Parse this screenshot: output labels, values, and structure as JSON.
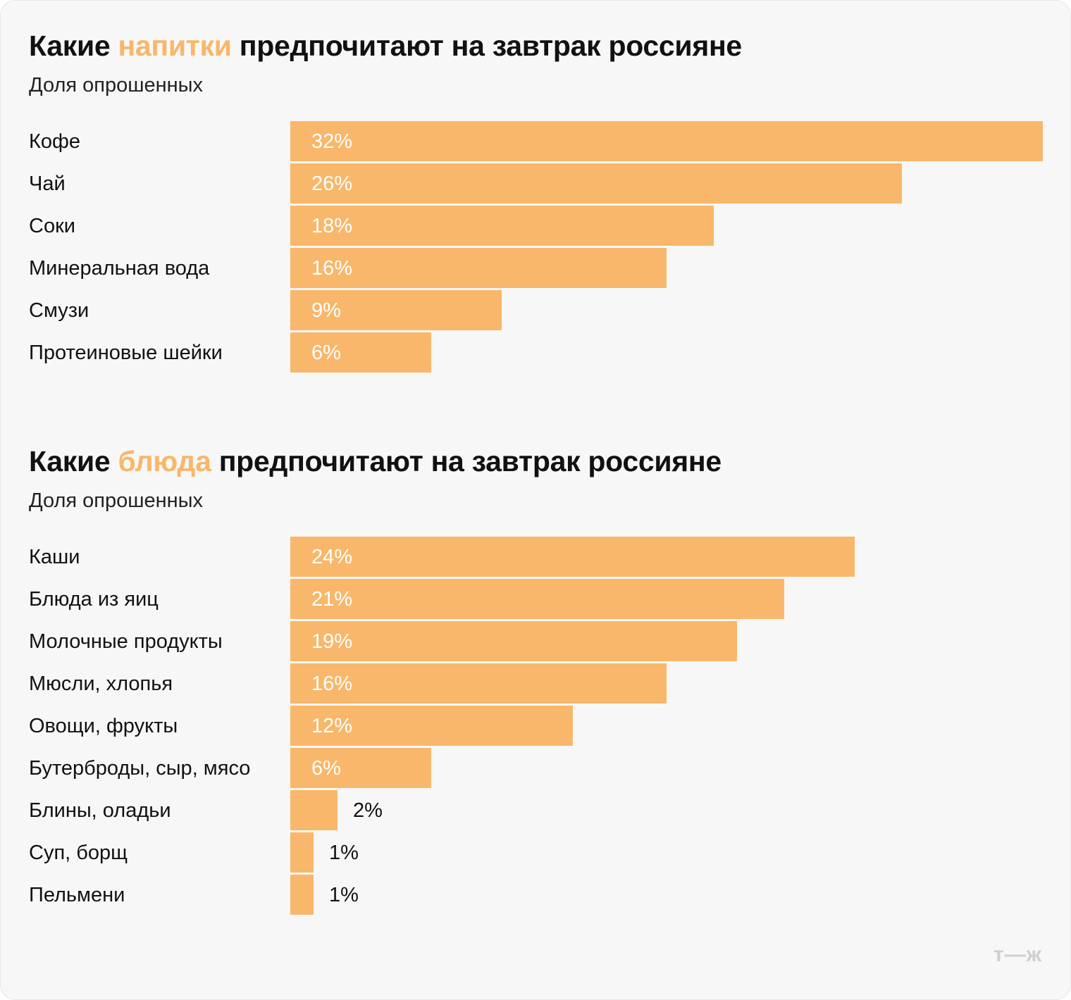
{
  "chart_data": [
    {
      "type": "bar",
      "orientation": "horizontal",
      "title_parts": [
        "Какие ",
        "напитки",
        " предпочитают на завтрак россияне"
      ],
      "subtitle": "Доля опрошенных",
      "categories": [
        "Кофе",
        "Чай",
        "Соки",
        "Минеральная вода",
        "Смузи",
        "Протеиновые шейки"
      ],
      "values": [
        32,
        26,
        18,
        16,
        9,
        6
      ],
      "labels": [
        "32%",
        "26%",
        "18%",
        "16%",
        "9%",
        "6%"
      ],
      "xlim": [
        0,
        32
      ],
      "grid": false
    },
    {
      "type": "bar",
      "orientation": "horizontal",
      "title_parts": [
        "Какие ",
        "блюда",
        " предпочитают на завтрак россияне"
      ],
      "subtitle": "Доля опрошенных",
      "categories": [
        "Каши",
        "Блюда из яиц",
        "Молочные продукты",
        "Мюсли, хлопья",
        "Овощи, фрукты",
        "Бутерброды, сыр, мясо",
        "Блины, оладьи",
        "Суп, борщ",
        "Пельмени"
      ],
      "values": [
        24,
        21,
        19,
        16,
        12,
        6,
        2,
        1,
        1
      ],
      "labels": [
        "24%",
        "21%",
        "19%",
        "16%",
        "12%",
        "6%",
        "2%",
        "1%",
        "1%"
      ],
      "xlim": [
        0,
        32
      ],
      "grid": false
    }
  ],
  "colors": {
    "bar": "#f8b76a",
    "highlight": "#f8b76a",
    "background": "#f7f7f7",
    "logo": "#cfcfcf"
  },
  "logo": "т—ж"
}
